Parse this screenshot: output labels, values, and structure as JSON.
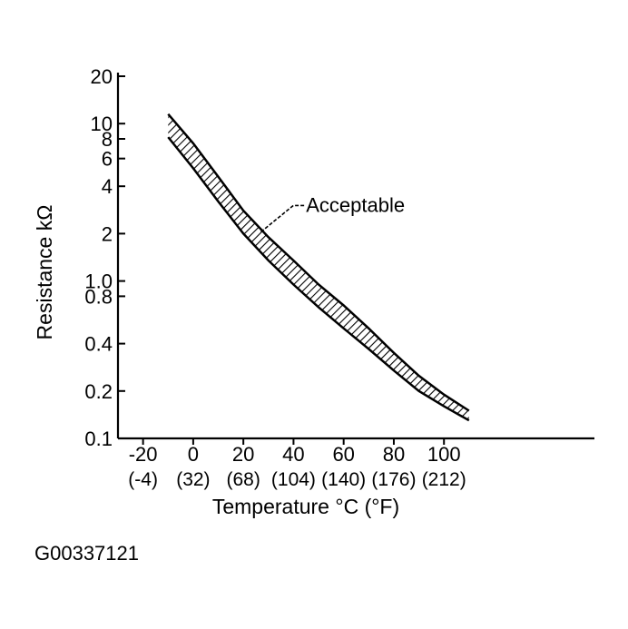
{
  "figure_id": "G00337121",
  "chart_data": {
    "type": "area",
    "x_scale": "linear",
    "y_scale": "log",
    "xlabel": "Temperature °C (°F)",
    "ylabel": "Resistance kΩ",
    "xlim": [
      -30,
      160
    ],
    "ylim": [
      0.1,
      20
    ],
    "x_ticks": [
      {
        "c": "-20",
        "f": "(-4)"
      },
      {
        "c": "0",
        "f": "(32)"
      },
      {
        "c": "20",
        "f": "(68)"
      },
      {
        "c": "40",
        "f": "(104)"
      },
      {
        "c": "60",
        "f": "(140)"
      },
      {
        "c": "80",
        "f": "(176)"
      },
      {
        "c": "100",
        "f": "(212)"
      }
    ],
    "y_ticks": [
      {
        "value": 20,
        "label": "20"
      },
      {
        "value": 10,
        "label": "10"
      },
      {
        "value": 8,
        "label": "8"
      },
      {
        "value": 6,
        "label": "6"
      },
      {
        "value": 4,
        "label": "4"
      },
      {
        "value": 2,
        "label": "2"
      },
      {
        "value": 1.0,
        "label": "1.0"
      },
      {
        "value": 0.8,
        "label": "0.8"
      },
      {
        "value": 0.4,
        "label": "0.4"
      },
      {
        "value": 0.2,
        "label": "0.2"
      },
      {
        "value": 0.1,
        "label": "0.1"
      }
    ],
    "band": {
      "name": "Acceptable",
      "upper": [
        [
          -10,
          11.5
        ],
        [
          0,
          7.5
        ],
        [
          10,
          4.6
        ],
        [
          20,
          2.8
        ],
        [
          30,
          1.9
        ],
        [
          40,
          1.35
        ],
        [
          50,
          0.95
        ],
        [
          60,
          0.7
        ],
        [
          70,
          0.5
        ],
        [
          80,
          0.35
        ],
        [
          90,
          0.25
        ],
        [
          100,
          0.19
        ],
        [
          110,
          0.15
        ]
      ],
      "lower": [
        [
          -10,
          8.2
        ],
        [
          0,
          5.2
        ],
        [
          10,
          3.2
        ],
        [
          20,
          2.0
        ],
        [
          30,
          1.35
        ],
        [
          40,
          0.95
        ],
        [
          50,
          0.68
        ],
        [
          60,
          0.5
        ],
        [
          70,
          0.37
        ],
        [
          80,
          0.27
        ],
        [
          90,
          0.2
        ],
        [
          100,
          0.16
        ],
        [
          110,
          0.13
        ]
      ]
    },
    "annotations": [
      {
        "text": "Acceptable",
        "x": 45,
        "y": 3.1
      }
    ]
  }
}
